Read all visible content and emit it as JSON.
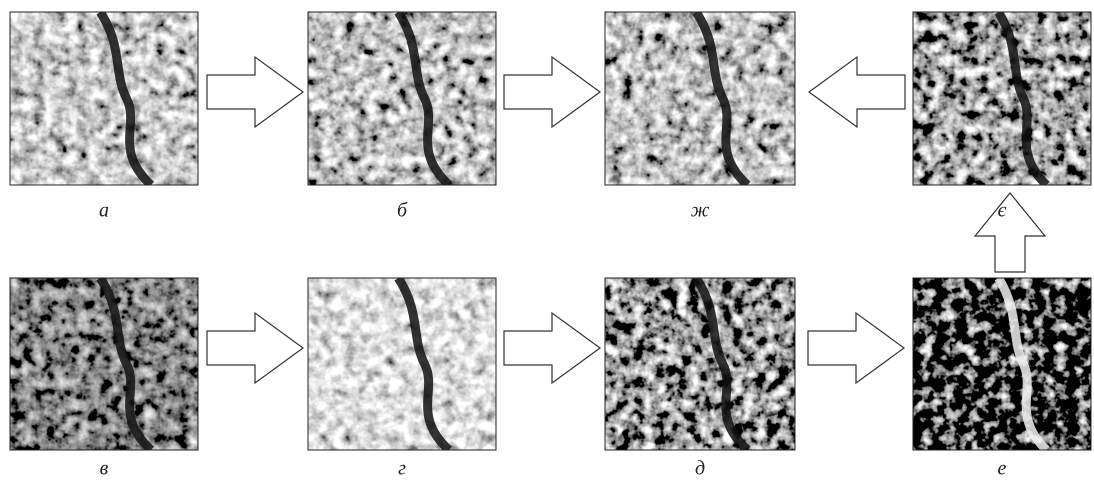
{
  "panels": [
    {
      "label": "а"
    },
    {
      "label": "б"
    },
    {
      "label": "ж"
    },
    {
      "label": "є"
    },
    {
      "label": "в"
    },
    {
      "label": "г"
    },
    {
      "label": "д"
    },
    {
      "label": "е"
    }
  ]
}
